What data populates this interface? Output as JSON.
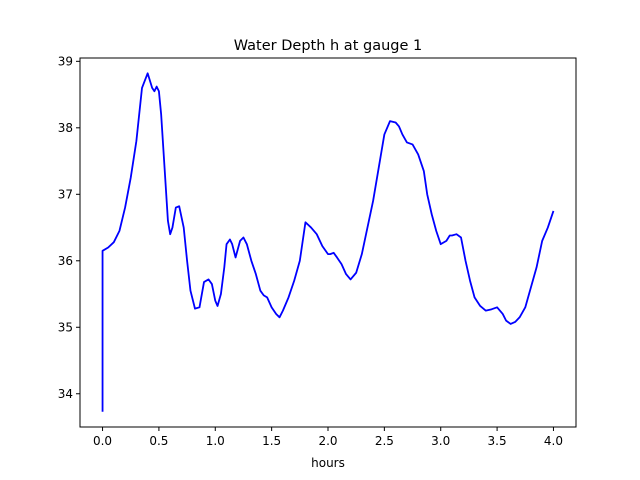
{
  "chart_data": {
    "type": "line",
    "title": "Water Depth h at gauge 1",
    "xlabel": "hours",
    "ylabel": "",
    "xlim": [
      -0.2,
      4.2
    ],
    "ylim": [
      33.5,
      39.05
    ],
    "xticks": [
      0.0,
      0.5,
      1.0,
      1.5,
      2.0,
      2.5,
      3.0,
      3.5,
      4.0
    ],
    "xtick_labels": [
      "0.0",
      "0.5",
      "1.0",
      "1.5",
      "2.0",
      "2.5",
      "3.0",
      "3.5",
      "4.0"
    ],
    "yticks": [
      34,
      35,
      36,
      37,
      38,
      39
    ],
    "ytick_labels": [
      "34",
      "35",
      "36",
      "37",
      "38",
      "39"
    ],
    "grid": false,
    "line_color": "#0000ff",
    "series": [
      {
        "x": [
          0.0,
          0.0,
          0.05,
          0.1,
          0.15,
          0.2,
          0.25,
          0.3,
          0.35,
          0.4,
          0.44,
          0.46,
          0.48,
          0.5,
          0.52,
          0.55,
          0.58,
          0.6,
          0.62,
          0.65,
          0.68,
          0.72,
          0.75,
          0.78,
          0.82,
          0.86,
          0.9,
          0.94,
          0.97,
          1.0,
          1.02,
          1.05,
          1.08,
          1.1,
          1.13,
          1.15,
          1.18,
          1.22,
          1.25,
          1.28,
          1.32,
          1.36,
          1.4,
          1.43,
          1.46,
          1.5,
          1.54,
          1.57,
          1.6,
          1.65,
          1.7,
          1.75,
          1.8,
          1.85,
          1.9,
          1.95,
          2.0,
          2.02,
          2.05,
          2.08,
          2.12,
          2.16,
          2.2,
          2.25,
          2.3,
          2.35,
          2.4,
          2.45,
          2.5,
          2.55,
          2.6,
          2.63,
          2.66,
          2.7,
          2.75,
          2.8,
          2.85,
          2.88,
          2.92,
          2.96,
          3.0,
          3.05,
          3.08,
          3.1,
          3.14,
          3.18,
          3.22,
          3.26,
          3.3,
          3.35,
          3.4,
          3.45,
          3.5,
          3.55,
          3.58,
          3.62,
          3.66,
          3.7,
          3.75,
          3.8,
          3.85,
          3.9,
          3.95,
          4.0
        ],
        "values": [
          33.73,
          36.15,
          36.2,
          36.28,
          36.45,
          36.8,
          37.25,
          37.8,
          38.6,
          38.82,
          38.6,
          38.55,
          38.62,
          38.55,
          38.2,
          37.4,
          36.6,
          36.4,
          36.5,
          36.8,
          36.82,
          36.5,
          36.0,
          35.55,
          35.28,
          35.3,
          35.68,
          35.72,
          35.65,
          35.4,
          35.32,
          35.5,
          35.9,
          36.25,
          36.32,
          36.25,
          36.05,
          36.3,
          36.35,
          36.25,
          36.0,
          35.8,
          35.55,
          35.48,
          35.45,
          35.3,
          35.2,
          35.15,
          35.25,
          35.45,
          35.7,
          36.0,
          36.58,
          36.5,
          36.4,
          36.22,
          36.1,
          36.1,
          36.12,
          36.05,
          35.95,
          35.8,
          35.72,
          35.82,
          36.1,
          36.5,
          36.9,
          37.4,
          37.9,
          38.1,
          38.08,
          38.02,
          37.9,
          37.78,
          37.75,
          37.6,
          37.35,
          37.0,
          36.7,
          36.45,
          36.25,
          36.3,
          36.38,
          36.38,
          36.4,
          36.35,
          36.0,
          35.7,
          35.45,
          35.32,
          35.25,
          35.27,
          35.3,
          35.2,
          35.1,
          35.05,
          35.08,
          35.15,
          35.3,
          35.6,
          35.9,
          36.3,
          36.5,
          36.75
        ]
      }
    ]
  }
}
